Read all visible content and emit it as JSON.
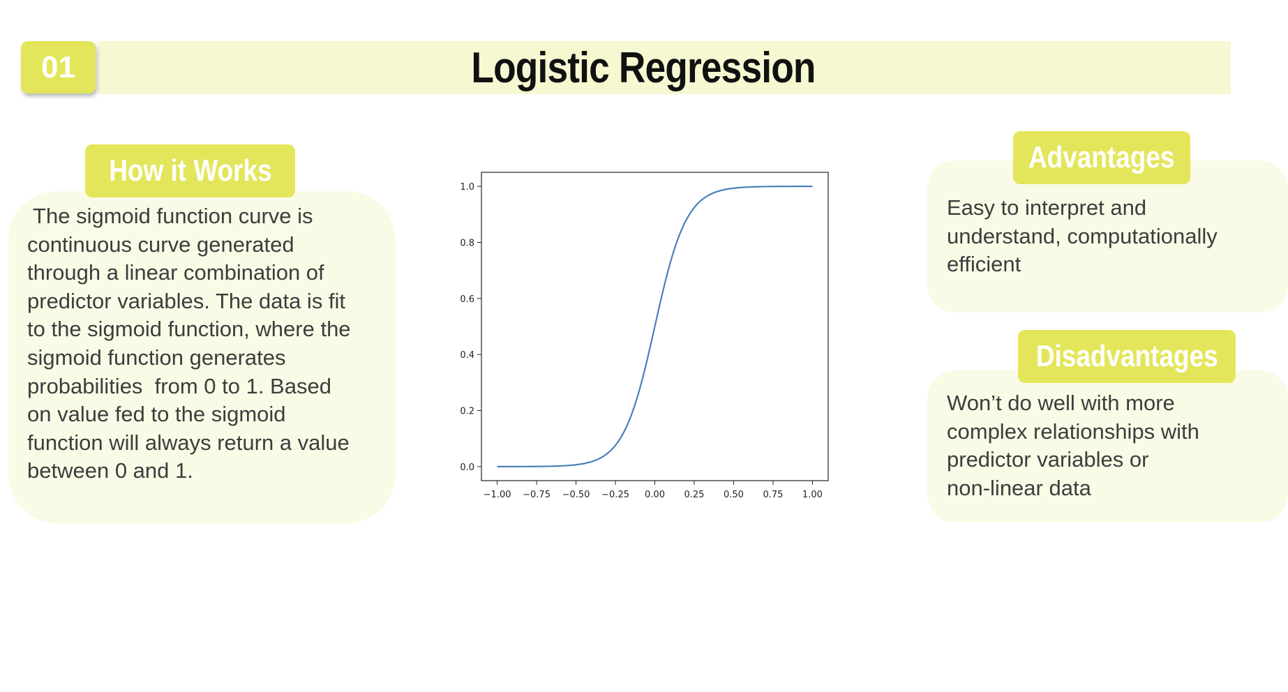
{
  "slide": {
    "number": "01",
    "title": "Logistic Regression"
  },
  "how_it_works": {
    "heading": "How it Works",
    "lines": [
      " The sigmoid function curve is",
      "continuous curve generated",
      "through a linear combination of",
      "predictor variables. The data is fit",
      "to the sigmoid function, where the",
      "sigmoid function generates",
      "probabilities  from 0 to 1. Based",
      "on value fed to the sigmoid",
      "function will always return a value",
      "between 0 and 1."
    ]
  },
  "advantages": {
    "heading": "Advantages",
    "lines": [
      "Easy to interpret and",
      "understand, computationally",
      "efficient"
    ]
  },
  "disadvantages": {
    "heading": "Disadvantages",
    "lines": [
      "Won’t do well with more",
      "complex relationships with",
      "predictor variables or",
      "non-linear data"
    ]
  },
  "chart_data": {
    "type": "line",
    "function": "sigmoid",
    "x_range": [
      -1.0,
      1.0
    ],
    "xlim": [
      -1.1,
      1.1
    ],
    "ylim": [
      -0.05,
      1.05
    ],
    "x_ticks": [
      "−1.00",
      "−0.75",
      "−0.50",
      "−0.25",
      "0.00",
      "0.25",
      "0.50",
      "0.75",
      "1.00"
    ],
    "x_tick_values": [
      -1.0,
      -0.75,
      -0.5,
      -0.25,
      0.0,
      0.25,
      0.5,
      0.75,
      1.0
    ],
    "y_ticks": [
      "0.0",
      "0.2",
      "0.4",
      "0.6",
      "0.8",
      "1.0"
    ],
    "y_tick_values": [
      0.0,
      0.2,
      0.4,
      0.6,
      0.8,
      1.0
    ],
    "points": [
      [
        -1.0,
        0.0
      ],
      [
        -0.9,
        0.0001
      ],
      [
        -0.8,
        0.0003
      ],
      [
        -0.7,
        0.0009
      ],
      [
        -0.6,
        0.0025
      ],
      [
        -0.5,
        0.0067
      ],
      [
        -0.4,
        0.018
      ],
      [
        -0.3,
        0.0474
      ],
      [
        -0.2,
        0.1192
      ],
      [
        -0.1,
        0.2689
      ],
      [
        0.0,
        0.5
      ],
      [
        0.1,
        0.7311
      ],
      [
        0.2,
        0.8808
      ],
      [
        0.3,
        0.9526
      ],
      [
        0.4,
        0.982
      ],
      [
        0.5,
        0.9933
      ],
      [
        0.6,
        0.9975
      ],
      [
        0.7,
        0.9991
      ],
      [
        0.8,
        0.9997
      ],
      [
        0.9,
        0.9999
      ],
      [
        1.0,
        1.0
      ]
    ],
    "line_color": "#4a7fbb",
    "grid": false,
    "legend": "none",
    "title": "",
    "xlabel": "",
    "ylabel": ""
  }
}
